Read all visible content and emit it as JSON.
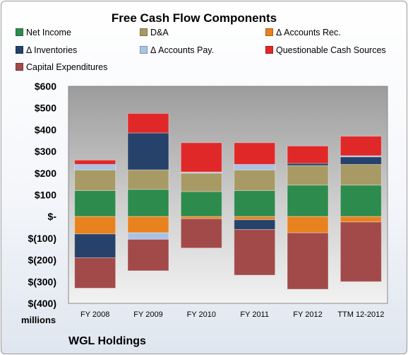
{
  "chart_data": {
    "type": "bar",
    "stacked": true,
    "title": "Free Cash Flow Components",
    "units_label": "millions",
    "company": "WGL Holdings",
    "categories": [
      "FY 2008",
      "FY 2009",
      "FY 2010",
      "FY 2011",
      "FY 2012",
      "TTM 12-2012"
    ],
    "y_ticks": [
      "$600",
      "$500",
      "$400",
      "$300",
      "$200",
      "$100",
      "$-",
      "$(100)",
      "$(200)",
      "$(300)",
      "$(400)"
    ],
    "ylim": [
      -400,
      600
    ],
    "grid": false,
    "legend_position": "top",
    "series": [
      {
        "name": "Net Income",
        "color": "#2e8b4e",
        "values": [
          120,
          125,
          115,
          120,
          145,
          145
        ]
      },
      {
        "name": "D&A",
        "color": "#a89a64",
        "values": [
          95,
          90,
          85,
          95,
          90,
          95
        ]
      },
      {
        "name": "Δ Accounts Rec.",
        "color": "#e8821e",
        "values": [
          -80,
          -75,
          -10,
          -15,
          -75,
          -25
        ]
      },
      {
        "name": "Δ Inventories",
        "color": "#26426a",
        "values": [
          -110,
          170,
          0,
          -45,
          10,
          35
        ]
      },
      {
        "name": "Δ Accounts Pay.",
        "color": "#a9c3e6",
        "values": [
          25,
          -30,
          5,
          25,
          0,
          5
        ]
      },
      {
        "name": "Questionable Cash Sources",
        "color": "#e02828",
        "values": [
          20,
          90,
          135,
          100,
          80,
          90
        ]
      },
      {
        "name": "Capital Expenditures",
        "color": "#a24a4a",
        "values": [
          -140,
          -145,
          -135,
          -210,
          -260,
          -275
        ]
      }
    ]
  }
}
